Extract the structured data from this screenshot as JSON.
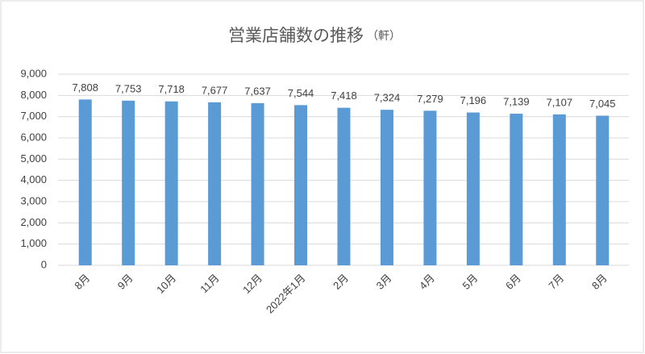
{
  "chart_data": {
    "type": "bar",
    "title": "営業店舗数の推移",
    "unit": "（軒）",
    "categories": [
      "8月",
      "9月",
      "10月",
      "11月",
      "12月",
      "2022年1月",
      "2月",
      "3月",
      "4月",
      "5月",
      "6月",
      "7月",
      "8月"
    ],
    "values": [
      7808,
      7753,
      7718,
      7677,
      7637,
      7544,
      7418,
      7324,
      7279,
      7196,
      7139,
      7107,
      7045
    ],
    "value_labels": [
      "7,808",
      "7,753",
      "7,718",
      "7,677",
      "7,637",
      "7,544",
      "7,418",
      "7,324",
      "7,279",
      "7,196",
      "7,139",
      "7,107",
      "7,045"
    ],
    "color": "#5b9bd5",
    "ylim": [
      0,
      9000
    ],
    "yticks": [
      0,
      {
        "value": 1000,
        "label": "1,000"
      },
      {
        "value": 2000,
        "label": "2,000"
      },
      {
        "value": 3000,
        "label": "3,000"
      },
      {
        "value": 4000,
        "label": "4,000"
      },
      {
        "value": 5000,
        "label": "5,000"
      },
      {
        "value": 6000,
        "label": "6,000"
      },
      {
        "value": 7000,
        "label": "7,000"
      },
      {
        "value": 8000,
        "label": "8,000"
      },
      {
        "value": 9000,
        "label": "9,000"
      }
    ],
    "grid": true
  }
}
